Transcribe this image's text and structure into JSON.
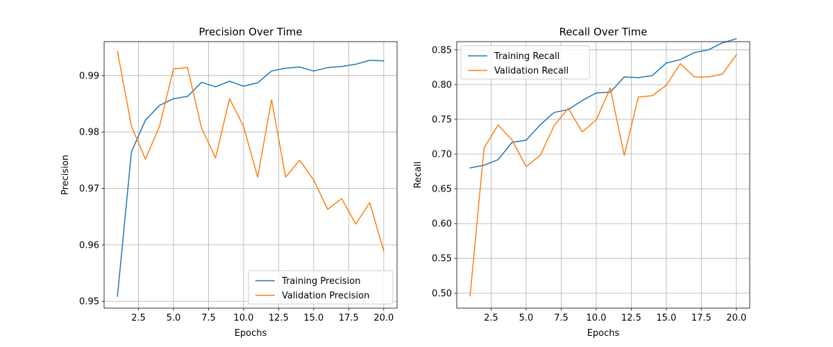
{
  "colors": {
    "training": "#1f77b4",
    "validation": "#ff7f0e",
    "grid": "#b0b0b0"
  },
  "chart_data": [
    {
      "type": "line",
      "title": "Precision Over Time",
      "xlabel": "Epochs",
      "ylabel": "Precision",
      "grid": true,
      "legend_position": "lower-right",
      "xlim": [
        0.05,
        20.95
      ],
      "ylim": [
        0.9488,
        0.996
      ],
      "xticks": [
        2.5,
        5.0,
        7.5,
        10.0,
        12.5,
        15.0,
        17.5,
        20.0
      ],
      "xtick_labels": [
        "2.5",
        "5.0",
        "7.5",
        "10.0",
        "12.5",
        "15.0",
        "17.5",
        "20.0"
      ],
      "yticks": [
        0.95,
        0.96,
        0.97,
        0.98,
        0.99
      ],
      "ytick_labels": [
        "0.95",
        "0.96",
        "0.97",
        "0.98",
        "0.99"
      ],
      "x": [
        1,
        2,
        3,
        4,
        5,
        6,
        7,
        8,
        9,
        10,
        11,
        12,
        13,
        14,
        15,
        16,
        17,
        18,
        19,
        20
      ],
      "series": [
        {
          "name": "Training Precision",
          "color": "#1f77b4",
          "values": [
            0.9509,
            0.9765,
            0.9821,
            0.9847,
            0.9859,
            0.9863,
            0.9888,
            0.988,
            0.989,
            0.9881,
            0.9887,
            0.9908,
            0.9913,
            0.9915,
            0.9908,
            0.9914,
            0.9916,
            0.992,
            0.9927,
            0.9926
          ]
        },
        {
          "name": "Validation Precision",
          "color": "#ff7f0e",
          "values": [
            0.9943,
            0.981,
            0.9752,
            0.981,
            0.9912,
            0.9914,
            0.9807,
            0.9754,
            0.9859,
            0.981,
            0.972,
            0.9857,
            0.972,
            0.975,
            0.9715,
            0.9663,
            0.9682,
            0.9637,
            0.9675,
            0.9589
          ]
        }
      ]
    },
    {
      "type": "line",
      "title": "Recall Over Time",
      "xlabel": "Epochs",
      "ylabel": "Recall",
      "grid": true,
      "legend_position": "upper-left",
      "xlim": [
        0.05,
        20.95
      ],
      "ylim": [
        0.4783,
        0.8618
      ],
      "xticks": [
        2.5,
        5.0,
        7.5,
        10.0,
        12.5,
        15.0,
        17.5,
        20.0
      ],
      "xtick_labels": [
        "2.5",
        "5.0",
        "7.5",
        "10.0",
        "12.5",
        "15.0",
        "17.5",
        "20.0"
      ],
      "yticks": [
        0.5,
        0.55,
        0.6,
        0.65,
        0.7,
        0.75,
        0.8,
        0.85
      ],
      "ytick_labels": [
        "0.50",
        "0.55",
        "0.60",
        "0.65",
        "0.70",
        "0.75",
        "0.80",
        "0.85"
      ],
      "x": [
        1,
        2,
        3,
        4,
        5,
        6,
        7,
        8,
        9,
        10,
        11,
        12,
        13,
        14,
        15,
        16,
        17,
        18,
        19,
        20
      ],
      "series": [
        {
          "name": "Training Recall",
          "color": "#1f77b4",
          "values": [
            0.68,
            0.684,
            0.692,
            0.717,
            0.72,
            0.742,
            0.76,
            0.764,
            0.777,
            0.788,
            0.789,
            0.811,
            0.81,
            0.813,
            0.831,
            0.836,
            0.846,
            0.85,
            0.86,
            0.866
          ]
        },
        {
          "name": "Validation Recall",
          "color": "#ff7f0e",
          "values": [
            0.496,
            0.709,
            0.742,
            0.72,
            0.682,
            0.698,
            0.741,
            0.766,
            0.732,
            0.749,
            0.795,
            0.698,
            0.782,
            0.784,
            0.799,
            0.83,
            0.811,
            0.811,
            0.815,
            0.843
          ]
        }
      ]
    }
  ]
}
